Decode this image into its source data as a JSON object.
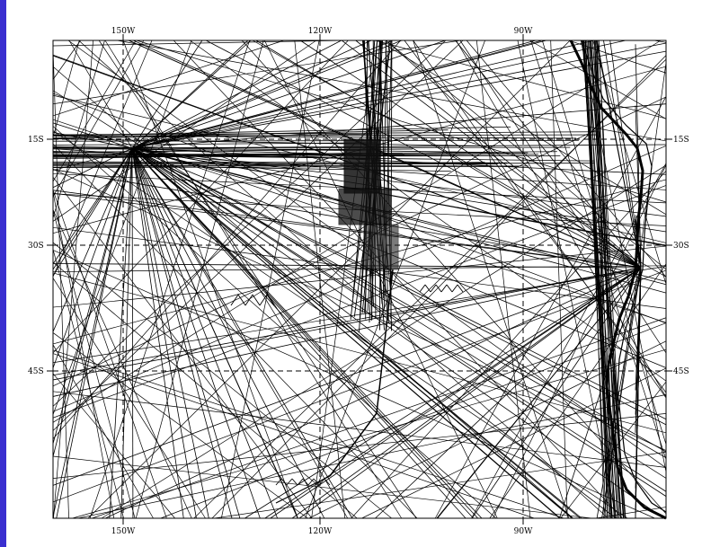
{
  "map": {
    "lon_top_labels": [
      "150W",
      "120W",
      "90W"
    ],
    "lon_bottom_labels": [
      "150W",
      "120W",
      "90W"
    ],
    "lat_left_labels": [
      "15S",
      "30S",
      "45S"
    ],
    "lat_right_labels": [
      "15S",
      "30S",
      "45S"
    ],
    "colors": {
      "background": "#3a2fd0",
      "map_fill": "#ffffff",
      "ink": "#000000"
    },
    "content": "dense ship-track lines over the southeast Pacific with coastline of South America on the right"
  }
}
